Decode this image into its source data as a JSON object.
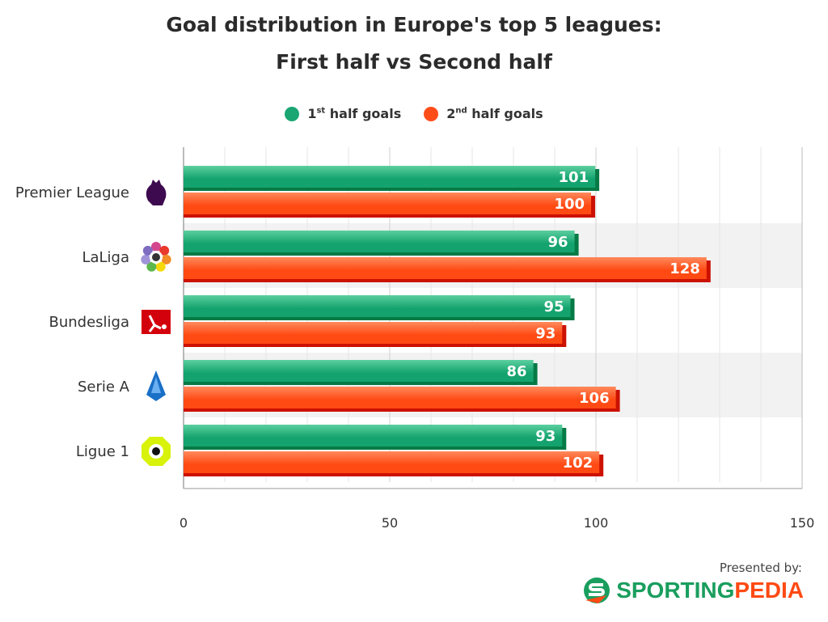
{
  "chart_data": {
    "type": "bar",
    "orientation": "horizontal",
    "title_line1": "Goal distribution in Europe's top 5 leagues:",
    "title_line2": "First half vs Second half",
    "categories": [
      "Premier League",
      "LaLiga",
      "Bundesliga",
      "Serie A",
      "Ligue 1"
    ],
    "series": [
      {
        "name": "1st half goals",
        "values": [
          101,
          96,
          95,
          86,
          93
        ],
        "color": "#1aa672"
      },
      {
        "name": "2nd half goals",
        "values": [
          100,
          128,
          93,
          106,
          102
        ],
        "color": "#ff4d1a"
      }
    ],
    "xlim": [
      0,
      150
    ],
    "xticks": [
      "0",
      "50",
      "100",
      "150"
    ],
    "grid": true,
    "legend_position": "top"
  },
  "legend": {
    "s1_base": "1",
    "s1_sup": "st",
    "s1_rest": " half goals",
    "s2_base": "2",
    "s2_sup": "nd",
    "s2_rest": " half goals"
  },
  "footer": {
    "presented": "Presented by:",
    "brand_a": "SPORTING",
    "brand_b": "PEDIA"
  }
}
